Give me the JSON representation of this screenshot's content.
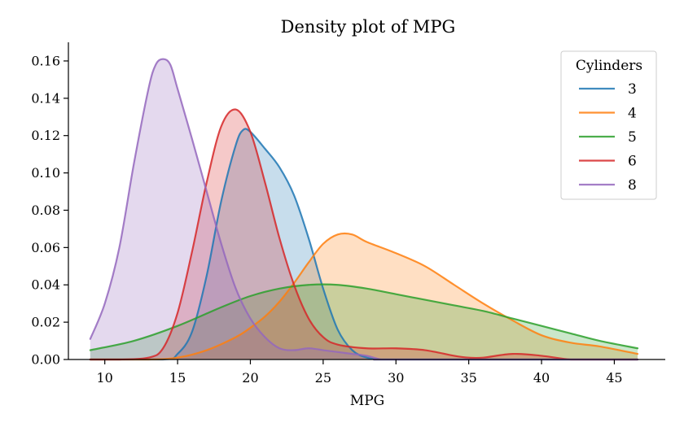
{
  "chart_data": {
    "type": "area",
    "title": "Density plot of MPG",
    "xlabel": "MPG",
    "ylabel": "",
    "xlim": [
      7.5,
      48.5
    ],
    "ylim": [
      0,
      0.17
    ],
    "x_ticks": [
      10,
      15,
      20,
      25,
      30,
      35,
      40,
      45
    ],
    "y_ticks": [
      0.0,
      0.02,
      0.04,
      0.06,
      0.08,
      0.1,
      0.12,
      0.14,
      0.16
    ],
    "grid": false,
    "legend": {
      "title": "Cylinders",
      "placement": "top-right"
    },
    "series": [
      {
        "name": "3",
        "color": "#1f77b4",
        "x": [
          9,
          14,
          15,
          16,
          17,
          18,
          19,
          19.5,
          20,
          21,
          22,
          23,
          24,
          25,
          26,
          27,
          28,
          29,
          30,
          46.6
        ],
        "values": [
          0.0,
          0.0,
          0.003,
          0.015,
          0.045,
          0.085,
          0.115,
          0.123,
          0.122,
          0.113,
          0.103,
          0.088,
          0.065,
          0.038,
          0.016,
          0.005,
          0.001,
          0.0,
          0.0,
          0.0
        ]
      },
      {
        "name": "4",
        "color": "#ff7f0e",
        "x": [
          9,
          13,
          15,
          17,
          19,
          20,
          21,
          22,
          23,
          24,
          25,
          26,
          27,
          28,
          30,
          32,
          34,
          36,
          38,
          40,
          42,
          44,
          46.6
        ],
        "values": [
          0.0,
          0.0,
          0.001,
          0.005,
          0.012,
          0.017,
          0.023,
          0.031,
          0.041,
          0.052,
          0.062,
          0.067,
          0.067,
          0.063,
          0.057,
          0.05,
          0.04,
          0.03,
          0.021,
          0.013,
          0.009,
          0.007,
          0.003
        ]
      },
      {
        "name": "5",
        "color": "#2ca02c",
        "x": [
          9,
          12,
          15,
          18,
          20,
          22,
          24,
          26,
          28,
          30,
          32,
          34,
          36,
          38,
          40,
          42,
          44,
          46.6
        ],
        "values": [
          0.005,
          0.01,
          0.018,
          0.028,
          0.034,
          0.038,
          0.04,
          0.04,
          0.038,
          0.035,
          0.032,
          0.029,
          0.026,
          0.022,
          0.018,
          0.014,
          0.01,
          0.006
        ]
      },
      {
        "name": "6",
        "color": "#d62728",
        "x": [
          9,
          11,
          13,
          14,
          15,
          16,
          17,
          18,
          19,
          20,
          21,
          22,
          23,
          24,
          25,
          26,
          28,
          30,
          32,
          34,
          35,
          36,
          38,
          40,
          42,
          44,
          46.6
        ],
        "values": [
          0.0,
          0.0,
          0.001,
          0.006,
          0.025,
          0.058,
          0.095,
          0.125,
          0.134,
          0.122,
          0.095,
          0.065,
          0.04,
          0.022,
          0.012,
          0.008,
          0.006,
          0.006,
          0.005,
          0.002,
          0.001,
          0.001,
          0.003,
          0.002,
          0.0,
          0.0,
          0.0
        ]
      },
      {
        "name": "8",
        "color": "#9467bd",
        "x": [
          9,
          10,
          11,
          12,
          13,
          13.5,
          14,
          14.5,
          15,
          16,
          17,
          18,
          19,
          20,
          21,
          22,
          23,
          24,
          25,
          26,
          27,
          28,
          29,
          30,
          46.6
        ],
        "values": [
          0.011,
          0.03,
          0.06,
          0.105,
          0.145,
          0.158,
          0.161,
          0.158,
          0.145,
          0.118,
          0.09,
          0.062,
          0.038,
          0.022,
          0.012,
          0.006,
          0.005,
          0.006,
          0.005,
          0.004,
          0.003,
          0.002,
          0.0,
          0.0,
          0.0
        ]
      }
    ]
  }
}
